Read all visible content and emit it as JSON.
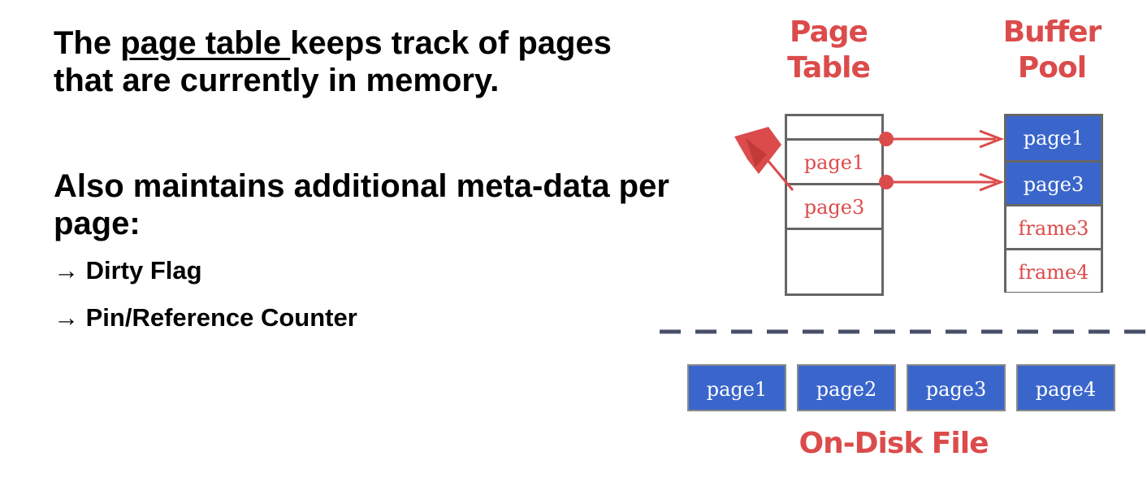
{
  "text": {
    "p1_before": "The ",
    "p1_link": "page table ",
    "p1_after": "keeps track of pages that are currently in memory.",
    "p2": "Also maintains additional meta-data  per page:",
    "bullets": [
      "→ Dirty Flag",
      "→ Pin/Reference Counter"
    ]
  },
  "diagram": {
    "page_table_title_line1": "Page",
    "page_table_title_line2": "Table",
    "buffer_pool_title_line1": "Buffer",
    "buffer_pool_title_line2": "Pool",
    "disk_title": "On-Disk File",
    "page_table_entries": [
      "page1",
      "page3",
      "",
      ""
    ],
    "buffer_pool_frames": [
      "page1",
      "page3",
      "frame3",
      "frame4"
    ],
    "disk_pages": [
      "page1",
      "page2",
      "page3",
      "page4"
    ],
    "accent_color": "#dc4b4b",
    "fill_color": "#3a66cc",
    "border_color": "#666666"
  }
}
